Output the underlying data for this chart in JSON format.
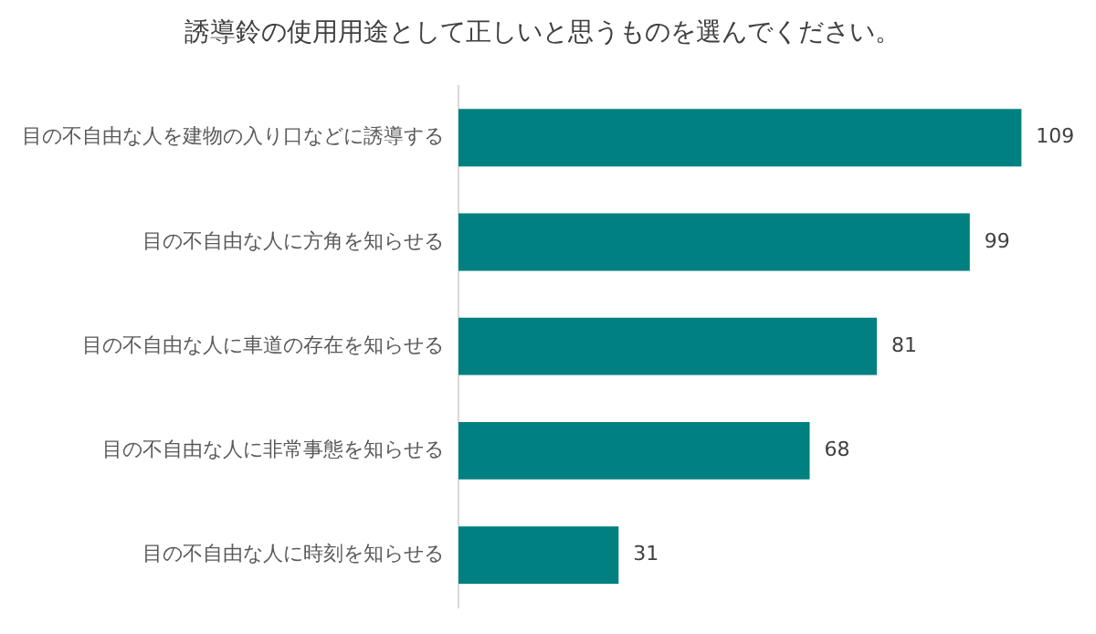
{
  "chart_data": {
    "type": "bar",
    "orientation": "horizontal",
    "title": "誘導鈴の使用用途として正しいと思うものを選んでください。",
    "categories": [
      "目の不自由な人を建物の入り口などに誘導する",
      "目の不自由な人に方角を知らせる",
      "目の不自由な人に車道の存在を知らせる",
      "目の不自由な人に非常事態を知らせる",
      "目の不自由な人に時刻を知らせる"
    ],
    "values": [
      109,
      99,
      81,
      68,
      31
    ],
    "color": "#008080",
    "data_labels": true,
    "legend": false
  }
}
